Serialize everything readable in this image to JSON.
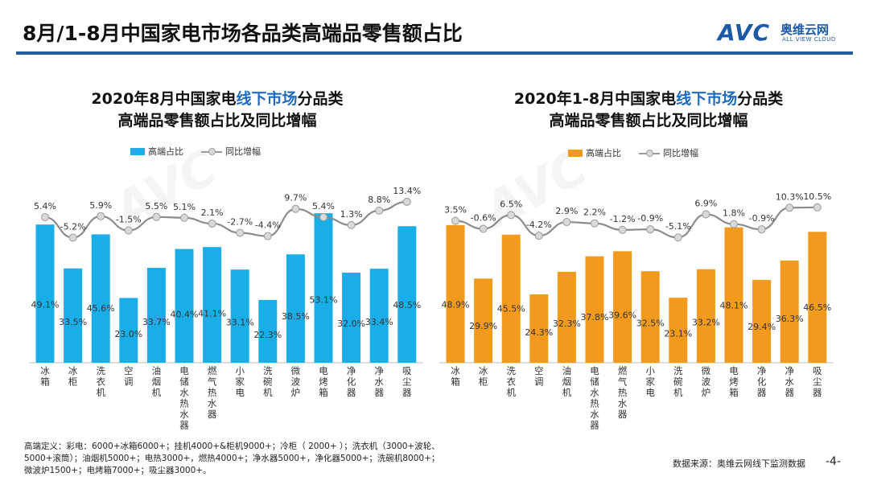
{
  "page": {
    "title": "8月/1-8月中国家电市场各品类高端品零售额占比",
    "logo_main": "AVC",
    "logo_cn": "奥维云网",
    "logo_en": "ALL VIEW CLOUD",
    "footnote": "高端定义：彩电：6000+冰箱6000+；挂机4000+&柜机9000+；冷柜（ 2000+ ）；洗衣机（3000+波轮、5000+滚筒）；油烟机5000+；电热3000+，燃热4000+；净水器5000+，净化器5000+；洗碗机8000+；微波炉1500+；电烤箱7000+；吸尘器3000+。",
    "source": "数据来源：奥维云网线下监测数据",
    "page_number": "-4-"
  },
  "chart_data": [
    {
      "type": "bar",
      "title_pre": "2020年8月中国家电",
      "title_highlight": "线下市场",
      "title_post": "分品类",
      "title_line2": "高端品零售额占比及同比增幅",
      "bar_color": "#1aaee8",
      "line_color": "#8c8c8c",
      "marker_fill": "#d9d9d9",
      "categories": [
        "冰箱",
        "冰柜",
        "洗衣机",
        "空调",
        "油烟机",
        "电储水热水器",
        "燃气热水器",
        "小家电",
        "洗碗机",
        "微波炉",
        "电烤箱",
        "净化器",
        "净水器",
        "吸尘器"
      ],
      "series": [
        {
          "name": "高端占比",
          "type": "bar",
          "values": [
            49.1,
            33.5,
            45.6,
            23.0,
            33.7,
            40.4,
            41.1,
            33.1,
            22.3,
            38.5,
            53.1,
            32.0,
            33.4,
            48.5
          ],
          "labels": [
            "49.1%",
            "33.5%",
            "45.6%",
            "23.0%",
            "33.7%",
            "40.4%",
            "41.1%",
            "33.1%",
            "22.3%",
            "38.5%",
            "53.1%",
            "32.0%",
            "33.4%",
            "48.5%"
          ]
        },
        {
          "name": "同比增幅",
          "type": "line",
          "values": [
            5.4,
            -5.2,
            5.9,
            -1.5,
            5.5,
            5.1,
            2.1,
            -2.7,
            -4.4,
            9.7,
            5.4,
            1.3,
            8.8,
            13.4
          ],
          "labels": [
            "5.4%",
            "-5.2%",
            "5.9%",
            "-1.5%",
            "5.5%",
            "5.1%",
            "2.1%",
            "-2.7%",
            "-4.4%",
            "9.7%",
            "5.4%",
            "1.3%",
            "8.8%",
            "13.4%"
          ]
        }
      ]
    },
    {
      "type": "bar",
      "title_pre": "2020年1-8月中国家电",
      "title_highlight": "线下市场",
      "title_post": "分品类",
      "title_line2": "高端品零售额占比及同比增幅",
      "bar_color": "#f19a1e",
      "line_color": "#8c8c8c",
      "marker_fill": "#d9d9d9",
      "categories": [
        "冰箱",
        "冰柜",
        "洗衣机",
        "空调",
        "油烟机",
        "电储水热水器",
        "燃气热水器",
        "小家电",
        "洗碗机",
        "微波炉",
        "电烤箱",
        "净化器",
        "净水器",
        "吸尘器"
      ],
      "series": [
        {
          "name": "高端占比",
          "type": "bar",
          "values": [
            48.9,
            29.9,
            45.5,
            24.3,
            32.3,
            37.8,
            39.6,
            32.5,
            23.1,
            33.2,
            48.1,
            29.4,
            36.3,
            46.5
          ],
          "labels": [
            "48.9%",
            "29.9%",
            "45.5%",
            "24.3%",
            "32.3%",
            "37.8%",
            "39.6%",
            "32.5%",
            "23.1%",
            "33.2%",
            "48.1%",
            "29.4%",
            "36.3%",
            "46.5%"
          ]
        },
        {
          "name": "同比增幅",
          "type": "line",
          "values": [
            3.5,
            -0.6,
            6.5,
            -4.2,
            2.9,
            2.2,
            -1.2,
            -0.9,
            -5.1,
            6.9,
            1.8,
            -0.9,
            10.3,
            10.5
          ],
          "labels": [
            "3.5%",
            "-0.6%",
            "6.5%",
            "-4.2%",
            "2.9%",
            "2.2%",
            "-1.2%",
            "-0.9%",
            "-5.1%",
            "6.9%",
            "1.8%",
            "-0.9%",
            "10.3%",
            "10.5%"
          ]
        }
      ]
    }
  ]
}
